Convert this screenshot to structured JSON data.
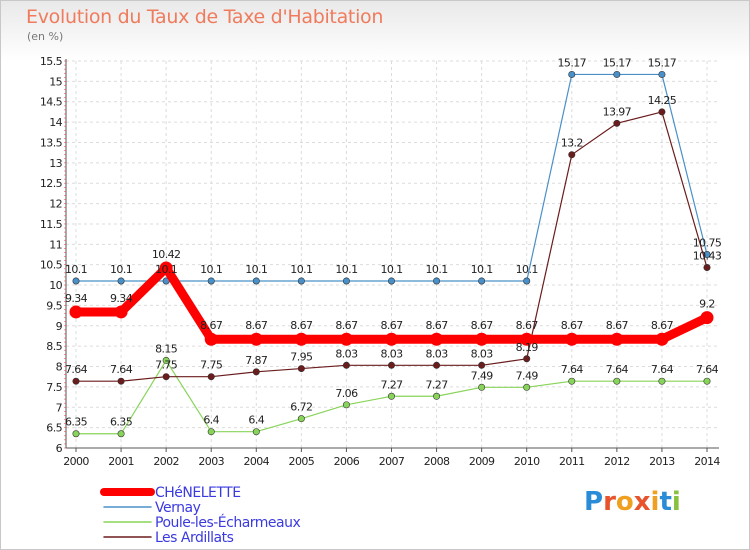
{
  "header": {
    "title": "Evolution du Taux de Taxe d'Habitation",
    "unit": "(en %)"
  },
  "chart_data": {
    "type": "line",
    "title": "Evolution du Taux de Taxe d'Habitation",
    "ylabel": "(en %)",
    "xlabel": "",
    "x": [
      "2000",
      "2001",
      "2002",
      "2003",
      "2004",
      "2005",
      "2006",
      "2007",
      "2008",
      "2009",
      "2010",
      "2011",
      "2012",
      "2013",
      "2014"
    ],
    "ylim": [
      6,
      15.5
    ],
    "yticks": [
      "6",
      "6.5",
      "7",
      "7.5",
      "8",
      "8.5",
      "9",
      "9.5",
      "10",
      "10.5",
      "11",
      "11.5",
      "12",
      "12.5",
      "13",
      "13.5",
      "14",
      "14.5",
      "15",
      "15.5"
    ],
    "grid": true,
    "legend_position": "bottom-left",
    "series": [
      {
        "name": "Vernay",
        "color": "#4a90c8",
        "values": [
          10.1,
          10.1,
          10.1,
          10.1,
          10.1,
          10.1,
          10.1,
          10.1,
          10.1,
          10.1,
          10.1,
          15.17,
          15.17,
          15.17,
          10.75
        ],
        "labels": [
          "10.1",
          "10.1",
          "10.1",
          "10.1",
          "10.1",
          "10.1",
          "10.1",
          "10.1",
          "10.1",
          "10.1",
          "10.1",
          "15.17",
          "15.17",
          "15.17",
          "10.75"
        ]
      },
      {
        "name": "Poule-les-Écharmeaux",
        "color": "#88d45a",
        "values": [
          6.35,
          6.35,
          8.15,
          6.4,
          6.4,
          6.72,
          7.06,
          7.27,
          7.27,
          7.49,
          7.49,
          7.64,
          7.64,
          7.64,
          7.64
        ],
        "labels": [
          "6.35",
          "6.35",
          "8.15",
          "6.4",
          "6.4",
          "6.72",
          "7.06",
          "7.27",
          "7.27",
          "7.49",
          "7.49",
          "7.64",
          "7.64",
          "7.64",
          "7.64"
        ]
      },
      {
        "name": "Les Ardillats",
        "color": "#6b1c1c",
        "values": [
          7.64,
          7.64,
          7.75,
          7.75,
          7.87,
          7.95,
          8.03,
          8.03,
          8.03,
          8.03,
          8.19,
          13.2,
          13.97,
          14.25,
          10.43
        ],
        "labels": [
          "7.64",
          "7.64",
          "7.75",
          "7.75",
          "7.87",
          "7.95",
          "8.03",
          "8.03",
          "8.03",
          "8.03",
          "8.19",
          "13.2",
          "13.97",
          "14.25",
          "10.43"
        ]
      },
      {
        "name": "CHéNELETTE",
        "color": "#ff0000",
        "values": [
          9.34,
          9.34,
          10.42,
          8.67,
          8.67,
          8.67,
          8.67,
          8.67,
          8.67,
          8.67,
          8.67,
          8.67,
          8.67,
          8.67,
          9.2
        ],
        "labels": [
          "9.34",
          "9.34",
          "10.42",
          "8.67",
          "8.67",
          "8.67",
          "8.67",
          "8.67",
          "8.67",
          "8.67",
          "8.67",
          "8.67",
          "8.67",
          "8.67",
          "9.2"
        ]
      }
    ],
    "legend": [
      {
        "name": "CHéNELETTE",
        "color": "#ff0000"
      },
      {
        "name": "Vernay",
        "color": "#4a90c8"
      },
      {
        "name": "Poule-les-Écharmeaux",
        "color": "#88d45a"
      },
      {
        "name": "Les Ardillats",
        "color": "#6b1c1c"
      }
    ]
  },
  "logo": {
    "letters": [
      "P",
      "r",
      "o",
      "x",
      "i",
      "t",
      "i"
    ],
    "colors": [
      "#2a8bd6",
      "#e8532b",
      "#f0a020",
      "#e8532b",
      "#f0a020",
      "#2a8bd6",
      "#88c040"
    ]
  }
}
